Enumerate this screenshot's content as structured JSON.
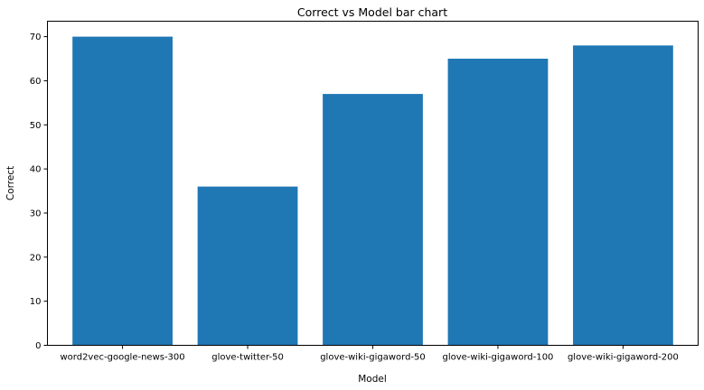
{
  "chart_data": {
    "type": "bar",
    "title": "Correct vs Model bar chart",
    "xlabel": "Model",
    "ylabel": "Correct",
    "categories": [
      "word2vec-google-news-300",
      "glove-twitter-50",
      "glove-wiki-gigaword-50",
      "glove-wiki-gigaword-100",
      "glove-wiki-gigaword-200"
    ],
    "values": [
      70,
      36,
      57,
      65,
      68
    ],
    "ylim": [
      0,
      73.5
    ],
    "yticks": [
      0,
      10,
      20,
      30,
      40,
      50,
      60,
      70
    ],
    "bar_color": "#1f77b4",
    "grid": false,
    "legend": "none"
  }
}
